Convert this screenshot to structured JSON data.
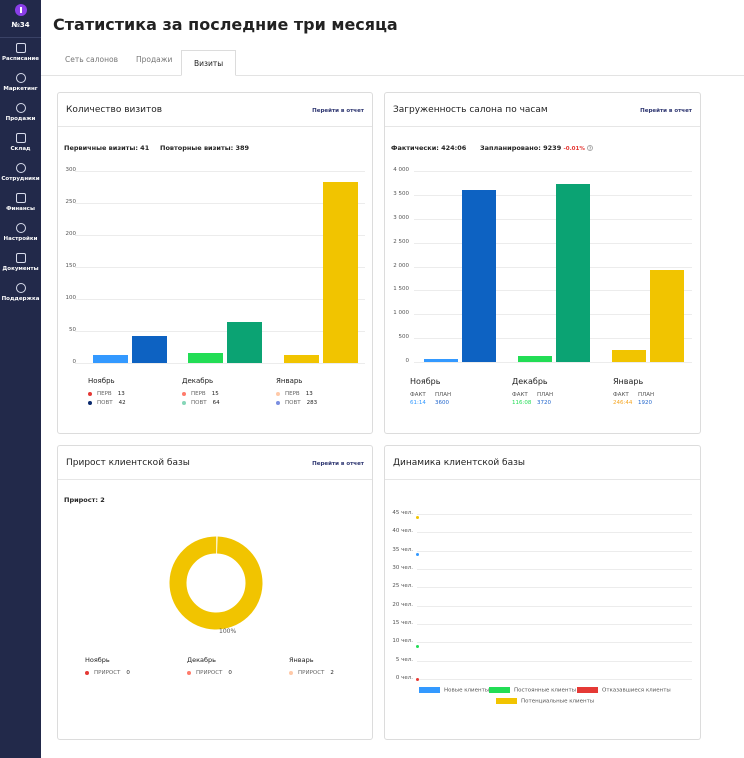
{
  "app": {
    "badge": "№34"
  },
  "sidebar": {
    "items": [
      {
        "label": "Расписание",
        "icon": "calendar-icon"
      },
      {
        "label": "Маркетинг",
        "icon": "chat-icon"
      },
      {
        "label": "Продажи",
        "icon": "tag-icon"
      },
      {
        "label": "Склад",
        "icon": "box-icon"
      },
      {
        "label": "Сотрудники",
        "icon": "user-icon"
      },
      {
        "label": "Финансы",
        "icon": "wallet-icon"
      },
      {
        "label": "Настройки",
        "icon": "gear-icon"
      },
      {
        "label": "Документы",
        "icon": "folder-icon"
      },
      {
        "label": "Поддержка",
        "icon": "alert-icon"
      }
    ]
  },
  "page": {
    "title": "Статистика за последние три месяца"
  },
  "tabs": [
    {
      "label": "Сеть салонов",
      "active": false
    },
    {
      "label": "Продажи",
      "active": false
    },
    {
      "label": "Визиты",
      "active": true
    }
  ],
  "colors": {
    "sidebar_bg": "#22294a",
    "accent_purple": "#8a3ee8",
    "blue_light": "#3399ff",
    "blue_dark": "#0d62c2",
    "green_light": "#22dd55",
    "green_dark": "#0ba373",
    "yellow": "#f1c400",
    "red": "#e53935"
  },
  "visits_card": {
    "title": "Количество визитов",
    "link": "Перейти в отчет",
    "primary_label": "Первичные визиты: 41",
    "repeat_label": "Повторные визиты: 389",
    "legend_prim": "ПЕРВ",
    "legend_rep": "ПОВТ"
  },
  "load_card": {
    "title": "Загруженность салона по часам",
    "link": "Перейти в отчет",
    "fact_label": "Фактически: 424:06",
    "plan_label": "Запланировано: 9239",
    "plan_delta": "-0.01%",
    "fact_word": "ФАКТ",
    "plan_word": "ПЛАН"
  },
  "growth_card": {
    "title": "Прирост клиентской базы",
    "link": "Перейти в отчет",
    "total_label": "Прирост: 2",
    "donut_percent": "100%",
    "donut_share": 1.0,
    "legend_label": "ПРИРОСТ",
    "months": [
      {
        "name": "Ноябрь",
        "value": "0"
      },
      {
        "name": "Декабрь",
        "value": "0"
      },
      {
        "name": "Январь",
        "value": "2"
      }
    ]
  },
  "dynamics_card": {
    "title": "Динамика клиентской базы",
    "legend": [
      "Новые клиенты",
      "Постоянные клиенты",
      "Отказавшиеся клиенты",
      "Потенциальные клиенты"
    ]
  },
  "chart_data": [
    {
      "type": "bar",
      "title": "Количество визитов",
      "categories": [
        "Ноябрь",
        "Декабрь",
        "Январь"
      ],
      "ylim": [
        0,
        300
      ],
      "yticks": [
        "0",
        "50",
        "100",
        "150",
        "200",
        "250",
        "300"
      ],
      "series": [
        {
          "name": "ПЕРВ",
          "values": [
            13,
            15,
            13
          ]
        },
        {
          "name": "ПОВТ",
          "values": [
            42,
            64,
            283
          ]
        }
      ]
    },
    {
      "type": "bar",
      "title": "Загруженность салона по часам",
      "categories": [
        "Ноябрь",
        "Декабрь",
        "Январь"
      ],
      "ylim": [
        0,
        4000
      ],
      "yticks": [
        "0",
        "500",
        "1 000",
        "1 500",
        "2 000",
        "2 500",
        "3 000",
        "3 500",
        "4 000"
      ],
      "fact_labels": [
        "61:14",
        "116:08",
        "246:44"
      ],
      "series": [
        {
          "name": "ФАКТ",
          "values": [
            61,
            116,
            247
          ]
        },
        {
          "name": "ПЛАН",
          "values": [
            3600,
            3720,
            1920
          ]
        }
      ]
    },
    {
      "type": "pie",
      "title": "Прирост клиентской базы",
      "categories": [
        "Ноябрь",
        "Декабрь",
        "Январь"
      ],
      "values": [
        0,
        0,
        2
      ]
    },
    {
      "type": "scatter",
      "title": "Динамика клиентской базы",
      "ylim": [
        0,
        45
      ],
      "yticks": [
        "0 чел.",
        "5 чел.",
        "10 чел.",
        "15 чел.",
        "20 чел.",
        "25 чел.",
        "30 чел.",
        "35 чел.",
        "40 чел.",
        "45 чел."
      ],
      "series": [
        {
          "name": "Новые клиенты",
          "values": [
            34
          ]
        },
        {
          "name": "Постоянные клиенты",
          "values": [
            9
          ]
        },
        {
          "name": "Отказавшиеся клиенты",
          "values": [
            0
          ]
        },
        {
          "name": "Потенциальные клиенты",
          "values": [
            44
          ]
        }
      ]
    }
  ]
}
